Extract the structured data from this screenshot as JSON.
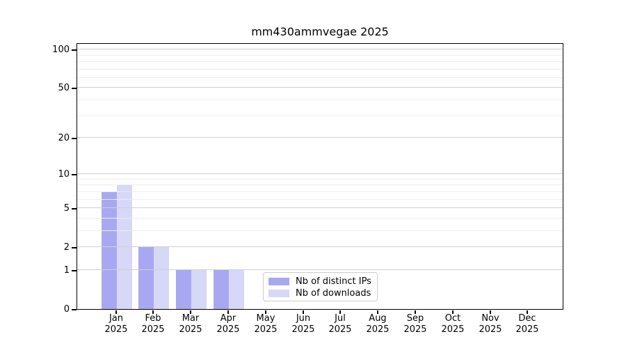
{
  "title": "mm430ammvegae 2025",
  "chart_data": {
    "type": "bar",
    "title": "mm430ammvegae 2025",
    "categories": [
      "Jan",
      "Feb",
      "Mar",
      "Apr",
      "May",
      "Jun",
      "Jul",
      "Aug",
      "Sep",
      "Oct",
      "Nov",
      "Dec"
    ],
    "year_label": "2025",
    "series": [
      {
        "name": "Nb of distinct IPs",
        "color": "#a8a8f2",
        "values": [
          7,
          2,
          1,
          1,
          0,
          0,
          0,
          0,
          0,
          0,
          0,
          0
        ]
      },
      {
        "name": "Nb of downloads",
        "color": "#d7d7f7",
        "values": [
          8,
          2,
          1,
          1,
          0,
          0,
          0,
          0,
          0,
          0,
          0,
          0
        ]
      }
    ],
    "y_axis": {
      "scale": "log1p",
      "major_ticks": [
        0,
        1,
        2,
        5,
        10,
        20,
        50,
        100
      ],
      "minor_ticks": [
        3,
        4,
        6,
        7,
        8,
        9,
        30,
        40,
        60,
        70,
        80,
        90
      ],
      "ylim": [
        0,
        113.5
      ],
      "grid": true
    },
    "x_axis": {
      "label_line2": "2025"
    },
    "legend": {
      "position": "lower-center-inside"
    }
  }
}
